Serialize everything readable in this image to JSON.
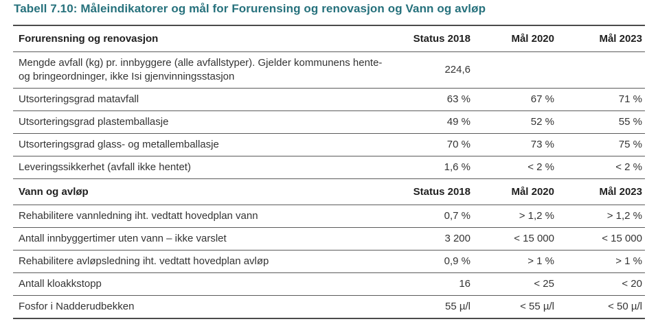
{
  "page": {
    "title": "Tabell 7.10: Måleindikatorer og mål for Forurensing og renovasjon og Vann og avløp"
  },
  "colors": {
    "title_teal": "#26717c",
    "rule_heavy": "#4a4a4a",
    "rule_light": "#5a5a5a",
    "header_text": "#1f1f1f",
    "body_text": "#333333"
  },
  "table": {
    "sections": [
      {
        "header": {
          "label": "Forurensning og renovasjon",
          "cols": [
            "Status 2018",
            "Mål 2020",
            "Mål 2023"
          ]
        },
        "rows": [
          {
            "label": "Mengde avfall (kg) pr. innbyggere (alle avfallstyper). Gjelder kommunens hente- og bringeordninger, ikke Isi gjenvinningsstasjon",
            "status": "224,6",
            "m2020": "",
            "m2023": ""
          },
          {
            "label": "Utsorteringsgrad matavfall",
            "status": "63 %",
            "m2020": "67 %",
            "m2023": "71 %"
          },
          {
            "label": "Utsorteringsgrad plastemballasje",
            "status": "49 %",
            "m2020": "52 %",
            "m2023": "55 %"
          },
          {
            "label": "Utsorteringsgrad glass- og metallemballasje",
            "status": "70 %",
            "m2020": "73 %",
            "m2023": "75 %"
          },
          {
            "label": "Leveringssikkerhet (avfall ikke hentet)",
            "status": "1,6 %",
            "m2020": "< 2 %",
            "m2023": "< 2 %"
          }
        ]
      },
      {
        "header": {
          "label": "Vann og avløp",
          "cols": [
            "Status 2018",
            "Mål 2020",
            "Mål 2023"
          ]
        },
        "rows": [
          {
            "label": "Rehabilitere vannledning iht. vedtatt hovedplan vann",
            "status": "0,7 %",
            "m2020": "> 1,2 %",
            "m2023": "> 1,2 %"
          },
          {
            "label": "Antall innbyggertimer uten vann – ikke varslet",
            "status": "3 200",
            "m2020": "< 15 000",
            "m2023": "< 15 000"
          },
          {
            "label": "Rehabilitere avløpsledning iht. vedtatt hovedplan avløp",
            "status": "0,9 %",
            "m2020": "> 1 %",
            "m2023": "> 1 %"
          },
          {
            "label": "Antall kloakkstopp",
            "status": "16",
            "m2020": "< 25",
            "m2023": "< 20"
          },
          {
            "label": "Fosfor i Nadderudbekken",
            "status": "55 µ/l",
            "m2020": "< 55 µ/l",
            "m2023": "< 50 µ/l"
          }
        ]
      }
    ]
  }
}
